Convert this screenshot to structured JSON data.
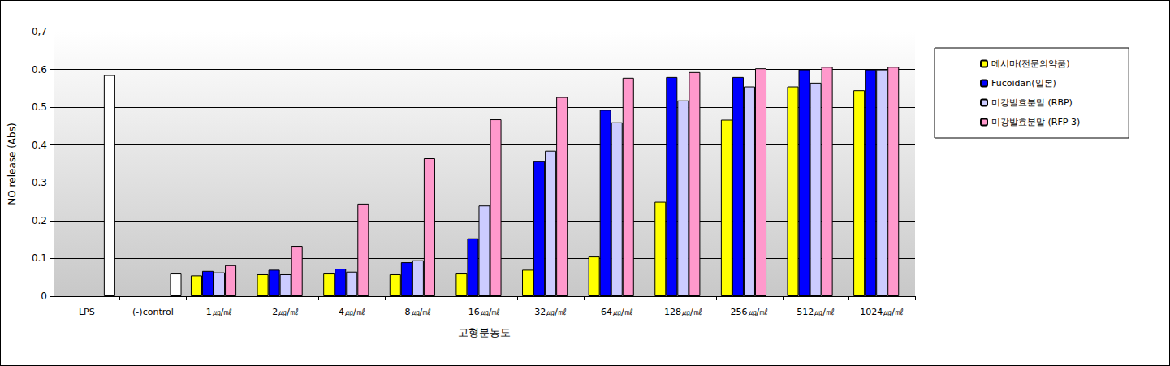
{
  "chart_data": {
    "type": "bar",
    "xlabel": "고형분농도",
    "ylabel": "NO release (Abs)",
    "categories": [
      "LPS",
      "(-)control",
      "1㎍/㎖",
      "2㎍/㎖",
      "4㎍/㎖",
      "8㎍/㎖",
      "16㎍/㎖",
      "32㎍/㎖",
      "64㎍/㎖",
      "128㎍/㎖",
      "256㎍/㎖",
      "512㎍/㎖",
      "1024㎍/㎖"
    ],
    "series": [
      {
        "name": "메시마(전문의약품)",
        "color": "#ffff00",
        "values": [
          null,
          null,
          0.055,
          0.058,
          0.06,
          0.058,
          0.06,
          0.07,
          0.105,
          0.25,
          0.467,
          0.555,
          0.545
        ]
      },
      {
        "name": "Fucoidan(일본)",
        "color": "#0000ff",
        "values": [
          null,
          null,
          0.067,
          0.07,
          0.073,
          0.09,
          0.153,
          0.357,
          0.493,
          0.58,
          0.58,
          0.6,
          0.6
        ]
      },
      {
        "name": "미강발효분말 (RBP)",
        "color": "#ccccff",
        "values": [
          null,
          null,
          0.063,
          0.058,
          0.065,
          0.095,
          0.24,
          0.385,
          0.46,
          0.518,
          0.555,
          0.565,
          0.6
        ]
      },
      {
        "name": "미강발효분말 (RFP 3)",
        "color": "#ff99cc",
        "values": [
          null,
          null,
          0.082,
          0.133,
          0.245,
          0.365,
          0.468,
          0.527,
          0.578,
          0.593,
          0.603,
          0.607,
          0.607
        ]
      },
      {
        "color": "#ffffff",
        "values": [
          0.585,
          0.06,
          null,
          null,
          null,
          null,
          null,
          null,
          null,
          null,
          null,
          null,
          null
        ]
      }
    ],
    "ylim": [
      0,
      0.7
    ],
    "yticks": [
      0,
      0.1,
      0.2,
      0.3,
      0.4,
      0.5,
      0.6,
      {
        "value": 0.7,
        "label": "0,7"
      }
    ],
    "grid": true,
    "legend": "right"
  }
}
